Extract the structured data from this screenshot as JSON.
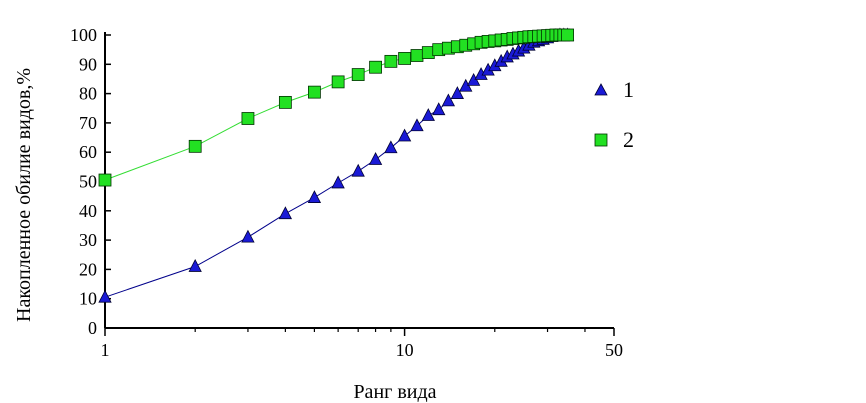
{
  "chart_data": {
    "type": "line",
    "title": "",
    "xlabel": "Ранг вида",
    "ylabel": "Накопленное обилие видов,%",
    "xscale": "log",
    "xlim": [
      1,
      50
    ],
    "ylim": [
      0,
      100
    ],
    "x_ticks": [
      1,
      10,
      50
    ],
    "x_tick_labels": [
      "1",
      "10",
      "50"
    ],
    "y_ticks": [
      0,
      10,
      20,
      30,
      40,
      50,
      60,
      70,
      80,
      90,
      100
    ],
    "y_tick_labels": [
      "0",
      "10",
      "20",
      "30",
      "40",
      "50",
      "60",
      "70",
      "80",
      "90",
      "100"
    ],
    "grid": false,
    "legend_position": "right",
    "series": [
      {
        "name": "1",
        "marker": "triangle",
        "color": "#1a1ad6",
        "line_color": "#00008b",
        "x": [
          1,
          2,
          3,
          4,
          5,
          6,
          7,
          8,
          9,
          10,
          11,
          12,
          13,
          14,
          15,
          16,
          17,
          18,
          19,
          20,
          21,
          22,
          23,
          24,
          25,
          26,
          27,
          28,
          29,
          30,
          31,
          32,
          33,
          34,
          35
        ],
        "y": [
          10.5,
          21,
          31,
          39,
          44.5,
          49.5,
          53.5,
          57.5,
          61.5,
          65.5,
          69,
          72.5,
          74.5,
          77.5,
          80,
          82.5,
          84.5,
          86.5,
          88,
          89.5,
          91,
          92.5,
          93.5,
          94.5,
          95.5,
          96.5,
          97.5,
          98,
          98.5,
          99,
          99.5,
          99.8,
          100,
          100,
          100
        ]
      },
      {
        "name": "2",
        "marker": "square",
        "color": "#22e022",
        "line_color": "#33dd33",
        "x": [
          1,
          2,
          3,
          4,
          5,
          6,
          7,
          8,
          9,
          10,
          11,
          12,
          13,
          14,
          15,
          16,
          17,
          18,
          19,
          20,
          21,
          22,
          23,
          24,
          25,
          26,
          27,
          28,
          29,
          30,
          31,
          32,
          33,
          34,
          35
        ],
        "y": [
          50.5,
          62,
          71.5,
          77,
          80.5,
          84,
          86.5,
          89,
          91,
          92,
          93,
          94,
          95,
          95.5,
          96,
          96.5,
          97,
          97.5,
          97.8,
          98,
          98.3,
          98.5,
          98.8,
          99,
          99.2,
          99.4,
          99.5,
          99.6,
          99.7,
          99.8,
          99.9,
          100,
          100,
          100,
          100
        ]
      }
    ]
  }
}
